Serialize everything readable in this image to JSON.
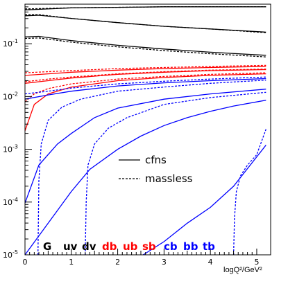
{
  "chart_data": {
    "type": "line",
    "xlabel": "logQ²/GeV²",
    "ylabel": "",
    "xlim": [
      0,
      5.3
    ],
    "ylim_log10": [
      -5,
      -0.25
    ],
    "y_scale": "log",
    "x_ticks": [
      "0",
      "1",
      "2",
      "3",
      "4",
      "5"
    ],
    "y_ticks": [
      {
        "base": "10",
        "exp": "-5",
        "value": -5
      },
      {
        "base": "10",
        "exp": "-4",
        "value": -4
      },
      {
        "base": "10",
        "exp": "-3",
        "value": -3
      },
      {
        "base": "10",
        "exp": "-2",
        "value": -2
      },
      {
        "base": "10",
        "exp": "-1",
        "value": -1
      }
    ],
    "legend": [
      {
        "label": "cfns",
        "style": "solid"
      },
      {
        "label": "massless",
        "style": "dashed"
      }
    ],
    "flavour_labels": [
      {
        "text": "G",
        "color": "#000000"
      },
      {
        "text": "uv",
        "color": "#000000"
      },
      {
        "text": "dv",
        "color": "#000000"
      },
      {
        "text": "db",
        "color": "#ff0000"
      },
      {
        "text": "ub",
        "color": "#ff0000"
      },
      {
        "text": "sb",
        "color": "#ff0000"
      },
      {
        "text": "cb",
        "color": "#0000ff"
      },
      {
        "text": "bb",
        "color": "#0000ff"
      },
      {
        "text": "tb",
        "color": "#0000ff"
      }
    ],
    "series": [
      {
        "color": "#000000",
        "style": "solid",
        "x": [
          0,
          1,
          2,
          3,
          4,
          5.2
        ],
        "log10y": [
          -0.36,
          -0.32,
          -0.31,
          -0.3,
          -0.3,
          -0.3
        ]
      },
      {
        "color": "#000000",
        "style": "dashed",
        "x": [
          0,
          1,
          2,
          3,
          4,
          5.2
        ],
        "log10y": [
          -0.34,
          -0.32,
          -0.31,
          -0.3,
          -0.3,
          -0.3
        ]
      },
      {
        "color": "#000000",
        "style": "solid",
        "x": [
          0,
          0.3,
          1,
          2,
          3,
          4,
          5.2
        ],
        "log10y": [
          -0.47,
          -0.46,
          -0.52,
          -0.6,
          -0.67,
          -0.72,
          -0.78
        ]
      },
      {
        "color": "#000000",
        "style": "dashed",
        "x": [
          0,
          0.3,
          1,
          2,
          3,
          4,
          5.2
        ],
        "log10y": [
          -0.45,
          -0.45,
          -0.52,
          -0.6,
          -0.67,
          -0.72,
          -0.79
        ]
      },
      {
        "color": "#000000",
        "style": "solid",
        "x": [
          0,
          0.3,
          1,
          2,
          3,
          4,
          5.2
        ],
        "log10y": [
          -0.87,
          -0.86,
          -0.94,
          -1.03,
          -1.1,
          -1.16,
          -1.22
        ]
      },
      {
        "color": "#000000",
        "style": "dashed",
        "x": [
          0,
          0.3,
          1,
          2,
          3,
          4,
          5.2
        ],
        "log10y": [
          -0.9,
          -0.89,
          -0.97,
          -1.06,
          -1.13,
          -1.19,
          -1.25
        ]
      },
      {
        "color": "#ff0000",
        "style": "solid",
        "x": [
          0,
          0.5,
          1,
          2,
          3,
          4,
          5.2
        ],
        "log10y": [
          -1.6,
          -1.57,
          -1.54,
          -1.5,
          -1.47,
          -1.45,
          -1.43
        ]
      },
      {
        "color": "#ff0000",
        "style": "dashed",
        "x": [
          0,
          0.5,
          1,
          2,
          3,
          4,
          5.2
        ],
        "log10y": [
          -1.55,
          -1.53,
          -1.51,
          -1.47,
          -1.45,
          -1.43,
          -1.41
        ]
      },
      {
        "color": "#ff0000",
        "style": "solid",
        "x": [
          0,
          0.5,
          1,
          2,
          3,
          4,
          5.2
        ],
        "log10y": [
          -1.75,
          -1.7,
          -1.65,
          -1.58,
          -1.54,
          -1.51,
          -1.49
        ]
      },
      {
        "color": "#ff0000",
        "style": "dashed",
        "x": [
          0,
          0.5,
          1,
          2,
          3,
          4,
          5.2
        ],
        "log10y": [
          -1.72,
          -1.67,
          -1.63,
          -1.57,
          -1.53,
          -1.5,
          -1.48
        ]
      },
      {
        "color": "#ff0000",
        "style": "solid",
        "x": [
          0,
          0.2,
          0.5,
          1,
          2,
          3,
          4,
          5.2
        ],
        "log10y": [
          -2.65,
          -2.15,
          -1.95,
          -1.82,
          -1.7,
          -1.64,
          -1.6,
          -1.57
        ]
      },
      {
        "color": "#ff0000",
        "style": "dashed",
        "x": [
          0,
          0.2,
          0.5,
          1,
          2,
          3,
          4,
          5.2
        ],
        "log10y": [
          -2.1,
          -1.95,
          -1.85,
          -1.76,
          -1.67,
          -1.62,
          -1.58,
          -1.55
        ]
      },
      {
        "color": "#0000ff",
        "style": "solid",
        "x": [
          0,
          0.5,
          1,
          2,
          3,
          4,
          5.2
        ],
        "log10y": [
          -2.05,
          -1.97,
          -1.9,
          -1.8,
          -1.74,
          -1.7,
          -1.66
        ]
      },
      {
        "color": "#0000ff",
        "style": "dashed",
        "x": [
          0,
          0.5,
          1,
          2,
          3,
          4,
          5.2
        ],
        "log10y": [
          -1.95,
          -1.9,
          -1.84,
          -1.76,
          -1.71,
          -1.67,
          -1.63
        ]
      },
      {
        "color": "#0000ff",
        "style": "solid",
        "x": [
          0,
          0.3,
          0.7,
          1,
          1.5,
          2,
          3,
          4,
          5.2
        ],
        "log10y": [
          -4.02,
          -3.3,
          -2.9,
          -2.7,
          -2.4,
          -2.22,
          -2.05,
          -1.95,
          -1.86
        ]
      },
      {
        "color": "#0000ff",
        "style": "dashed",
        "x": [
          0.28,
          0.3,
          0.35,
          0.5,
          0.8,
          1.2,
          2,
          3,
          4,
          5.2
        ],
        "log10y": [
          -5.0,
          -3.6,
          -2.9,
          -2.45,
          -2.2,
          -2.05,
          -1.9,
          -1.82,
          -1.75,
          -1.69
        ]
      },
      {
        "color": "#0000ff",
        "style": "solid",
        "x": [
          0,
          0.5,
          1,
          1.4,
          2,
          2.5,
          3,
          3.5,
          4,
          4.5,
          5.2
        ],
        "log10y": [
          -5.0,
          -4.4,
          -3.8,
          -3.38,
          -3.0,
          -2.75,
          -2.55,
          -2.4,
          -2.28,
          -2.18,
          -2.07
        ]
      },
      {
        "color": "#0000ff",
        "style": "dashed",
        "x": [
          1.3,
          1.32,
          1.36,
          1.5,
          1.8,
          2.2,
          3,
          4,
          5.2
        ],
        "log10y": [
          -5.0,
          -4.0,
          -3.3,
          -2.9,
          -2.6,
          -2.4,
          -2.15,
          -2.02,
          -1.92
        ]
      },
      {
        "color": "#0000ff",
        "style": "solid",
        "x": [
          2.55,
          3,
          3.5,
          4,
          4.5,
          5.2
        ],
        "log10y": [
          -5.0,
          -4.75,
          -4.4,
          -4.1,
          -3.7,
          -2.92
        ]
      },
      {
        "color": "#0000ff",
        "style": "dashed",
        "x": [
          4.5,
          4.52,
          4.56,
          4.65,
          4.8,
          5.0,
          5.2
        ],
        "log10y": [
          -5.0,
          -4.3,
          -3.8,
          -3.5,
          -3.3,
          -3.1,
          -2.62
        ]
      }
    ]
  }
}
